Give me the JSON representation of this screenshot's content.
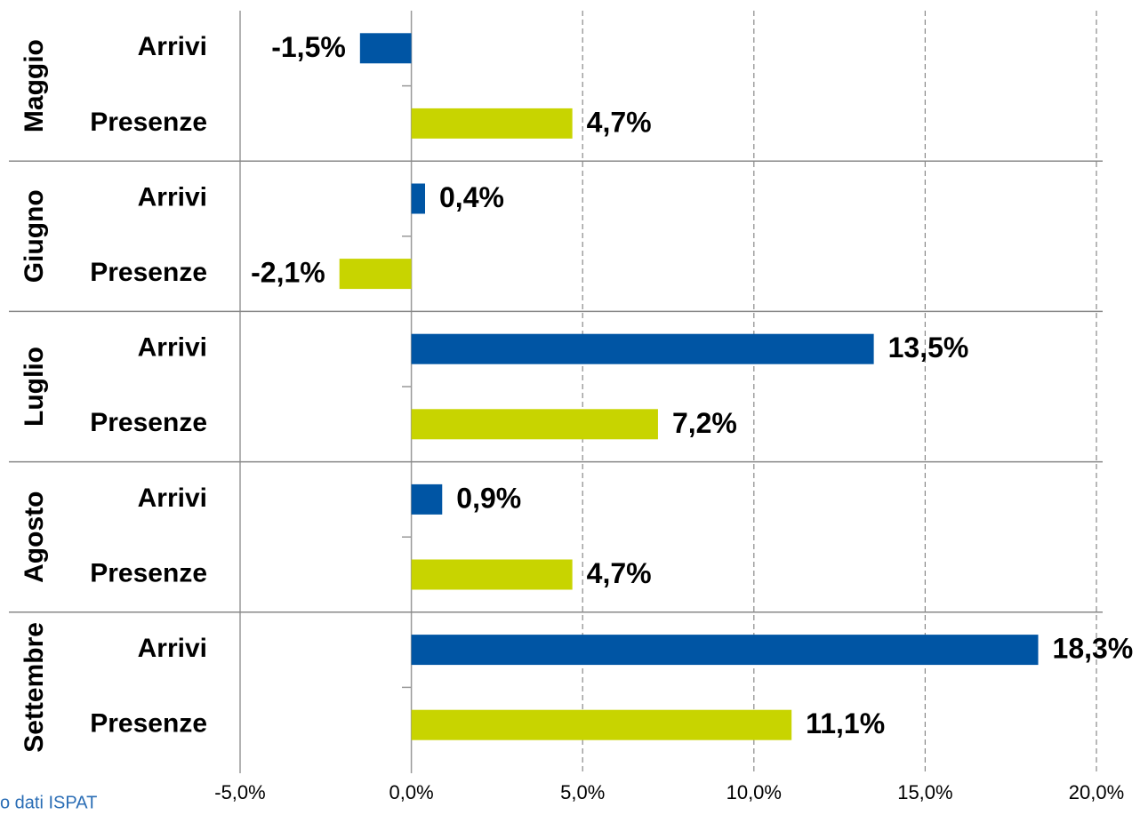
{
  "chart_data": {
    "type": "bar",
    "orientation": "horizontal",
    "categories": [
      "Maggio",
      "Giugno",
      "Luglio",
      "Agosto",
      "Settembre"
    ],
    "series": [
      {
        "name": "Arrivi",
        "color": "#0055a4",
        "values": [
          -1.5,
          0.4,
          13.5,
          0.9,
          18.3
        ],
        "value_labels": [
          "-1,5%",
          "0,4%",
          "13,5%",
          "0,9%",
          "18,3%"
        ]
      },
      {
        "name": "Presenze",
        "color": "#c8d400",
        "values": [
          4.7,
          -2.1,
          7.2,
          4.7,
          11.1
        ],
        "value_labels": [
          "4,7%",
          "-2,1%",
          "7,2%",
          "4,7%",
          "11,1%"
        ]
      }
    ],
    "xlim": [
      -5,
      20
    ],
    "xticks": [
      {
        "value": -5,
        "label": "-5,0%"
      },
      {
        "value": 0,
        "label": "0,0%"
      },
      {
        "value": 5,
        "label": "5,0%"
      },
      {
        "value": 10,
        "label": "10,0%"
      },
      {
        "value": 15,
        "label": "15,0%"
      },
      {
        "value": 20,
        "label": "20,0%"
      }
    ],
    "grid": true,
    "note": "o dati ISPAT"
  }
}
